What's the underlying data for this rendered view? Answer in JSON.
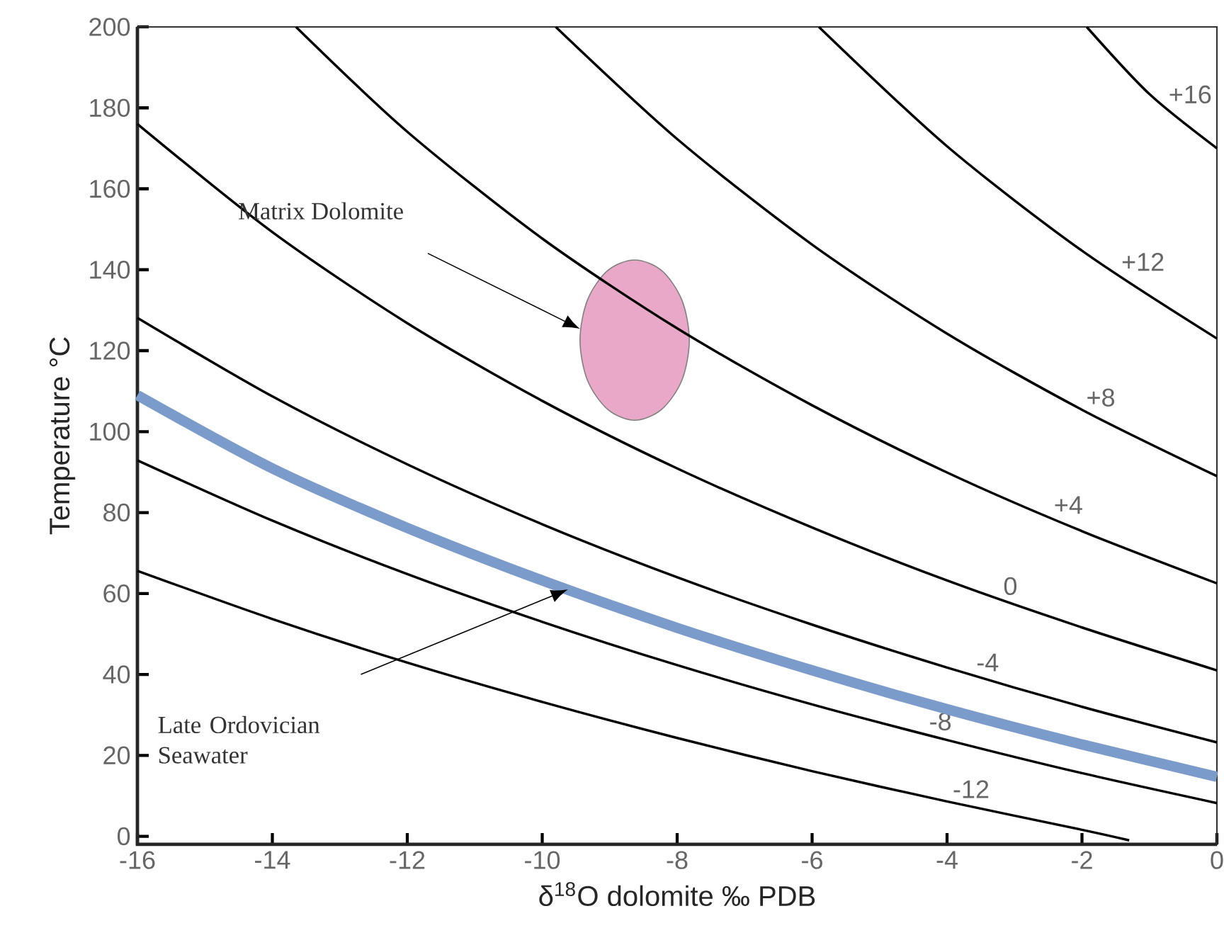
{
  "chart_data": {
    "type": "line",
    "xlabel": "δ$^{18}$O dolomite  ‰ PDB",
    "ylabel": "Temperature °C",
    "color": "#000000",
    "marker": "none",
    "xlim": [
      -16,
      0
    ],
    "ylim": [
      -2,
      200
    ],
    "xticks": [
      -16,
      -14,
      -12,
      -10,
      -8,
      -6,
      -4,
      -2,
      0
    ],
    "yticks": [
      0,
      20,
      40,
      60,
      80,
      100,
      120,
      140,
      160,
      180,
      200
    ],
    "series": [
      {
        "name": "-12",
        "x": [
          -16,
          -14,
          -12,
          -10,
          -8,
          -6,
          -4,
          -2,
          -1.3
        ],
        "values": [
          65.6,
          53.7,
          42.9,
          33.2,
          24.3,
          16.1,
          8.6,
          1.6,
          -1
        ]
      },
      {
        "name": "-8",
        "x": [
          -16,
          -14,
          -12,
          -10,
          -8,
          -6,
          -4,
          -2,
          0
        ],
        "values": [
          92.9,
          78,
          64.8,
          53,
          42.3,
          32.6,
          23.8,
          15.6,
          8.2
        ]
      },
      {
        "x": [
          -16,
          -14,
          -12,
          -10,
          -8,
          -6,
          -4,
          -2,
          0
        ],
        "values": [
          109,
          90.9,
          76.2,
          63.2,
          51.5,
          41,
          31.4,
          22.7,
          14.7
        ],
        "color": "#7b9bcb"
      },
      {
        "name": "-4",
        "x": [
          -16,
          -14,
          -12,
          -10,
          -8,
          -6,
          -4,
          -2,
          0
        ],
        "values": [
          128.1,
          108.7,
          91.9,
          77.1,
          64,
          52.3,
          41.7,
          32,
          23.2
        ]
      },
      {
        "name": "0",
        "x": [
          -16,
          -14,
          -12,
          -10,
          -8,
          -6,
          -4,
          -2,
          0
        ],
        "values": [
          176,
          149.3,
          126.8,
          107.6,
          90.9,
          76.3,
          63.2,
          51.6,
          41
        ]
      },
      {
        "name": "+4",
        "x": [
          -13.65,
          -12,
          -10,
          -8,
          -6,
          -4,
          -2,
          0
        ],
        "values": [
          200,
          174.1,
          147.7,
          125.5,
          106.5,
          89.9,
          75.4,
          62.5
        ]
      },
      {
        "name": "+8",
        "x": [
          -9.8,
          -8,
          -6,
          -4,
          -2,
          0
        ],
        "values": [
          200,
          172.3,
          146.2,
          124.2,
          105.4,
          89
        ]
      },
      {
        "name": "+12",
        "x": [
          -5.9,
          -4,
          -2,
          0
        ],
        "values": [
          200,
          170.5,
          144.7,
          123
        ]
      },
      {
        "name": "+16",
        "x": [
          -1.93,
          -1,
          0
        ],
        "values": [
          200,
          183.4,
          170
        ]
      },
      {
        "type": "area",
        "x": [
          -7.82,
          -7.93,
          -8.23,
          -8.63,
          -9.03,
          -9.33,
          -9.44,
          -9.33,
          -9.03,
          -8.63,
          -8.23,
          -7.93
        ],
        "values": [
          122.6,
          132.5,
          139.8,
          142.4,
          139.8,
          132.5,
          122.6,
          112.7,
          105.5,
          102.8,
          105.5,
          112.7
        ],
        "color": "#eaa8c8"
      }
    ],
    "annotations": [
      "Matrix Dolomite",
      "Late Ordovician Seawater"
    ]
  }
}
